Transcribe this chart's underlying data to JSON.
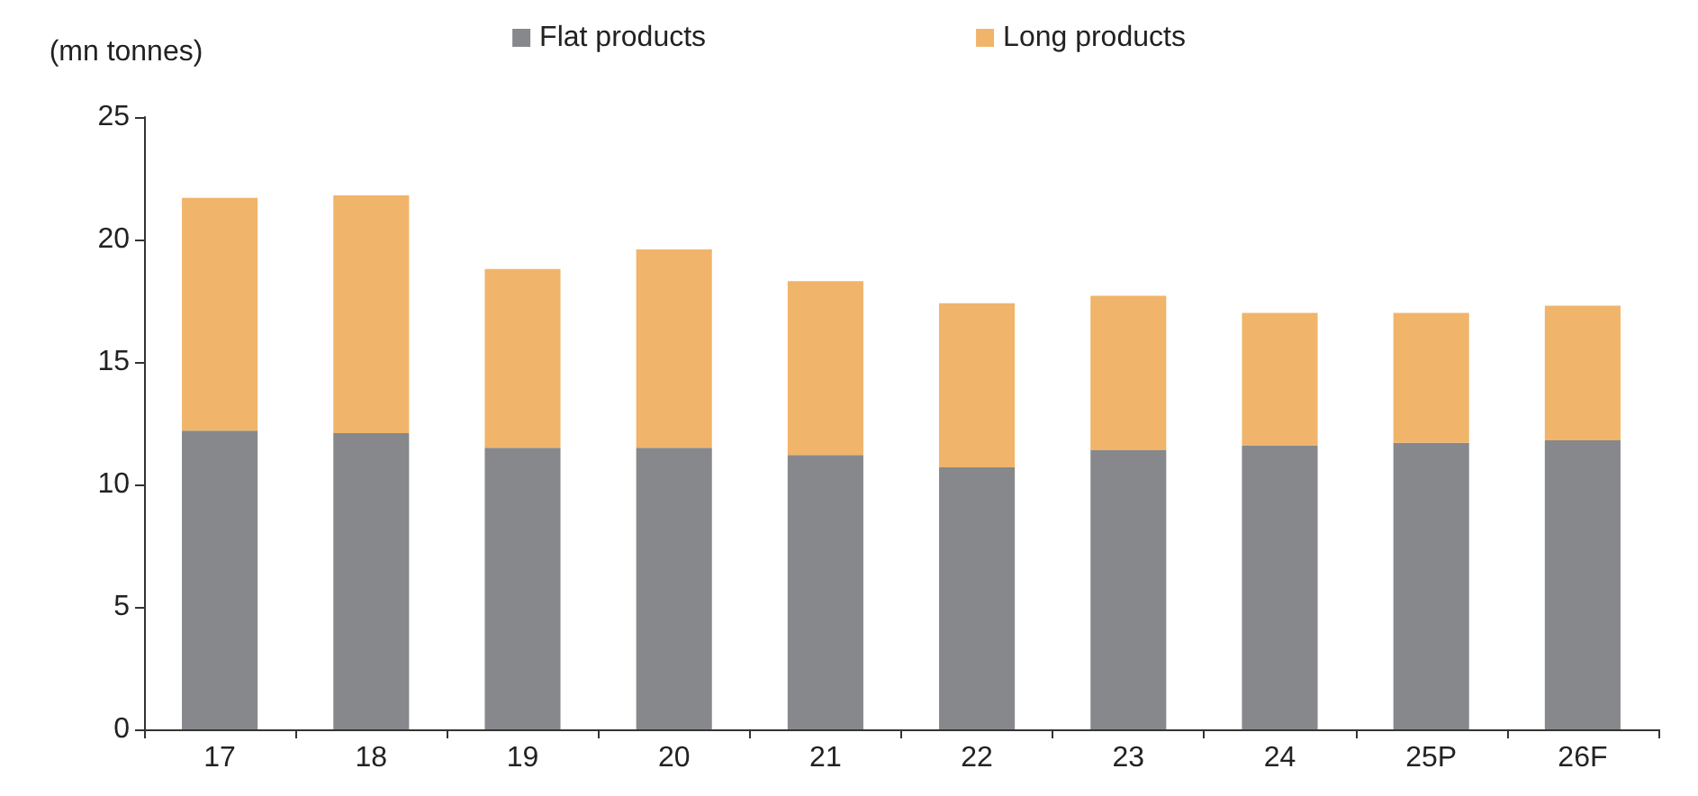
{
  "chart_data": {
    "type": "bar",
    "stacked": true,
    "ylabel": "(mn tonnes)",
    "categories": [
      "17",
      "18",
      "19",
      "20",
      "21",
      "22",
      "23",
      "24",
      "25P",
      "26F"
    ],
    "series": [
      {
        "name": "Flat products",
        "color": "#86888b",
        "values": [
          12.2,
          12.1,
          11.5,
          11.5,
          11.2,
          10.7,
          11.4,
          11.6,
          11.7,
          11.8
        ]
      },
      {
        "name": "Long products",
        "color": "#f0b46a",
        "values": [
          9.5,
          9.7,
          7.3,
          8.1,
          7.1,
          6.7,
          6.3,
          5.4,
          5.3,
          5.5
        ]
      }
    ],
    "ylim": [
      0,
      25
    ],
    "yticks": [
      0,
      5,
      10,
      15,
      20,
      25
    ],
    "grid": false,
    "legend": "top"
  }
}
